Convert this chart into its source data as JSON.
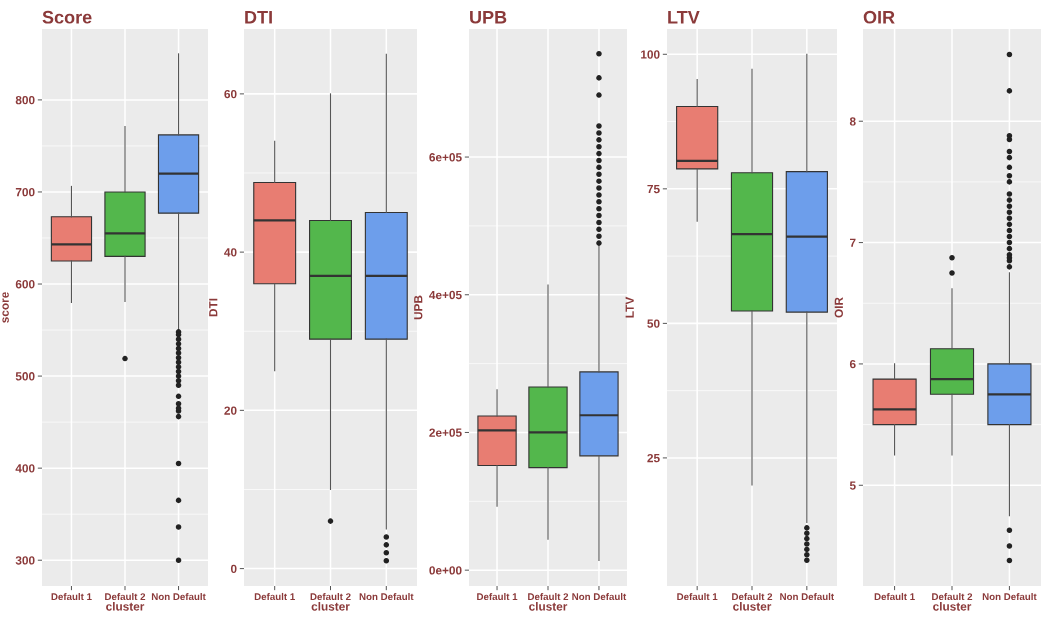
{
  "chart_data": [
    {
      "type": "box",
      "title": "Score",
      "xlabel": "cluster",
      "ylabel": "score",
      "categories": [
        "Default 1",
        "Default 2",
        "Non Default"
      ],
      "colors": [
        "#e87d72",
        "#53b74c",
        "#6d9eeb"
      ],
      "ylim": [
        272,
        877
      ],
      "yticks": [
        300,
        400,
        500,
        600,
        700,
        800
      ],
      "grid": true,
      "boxes": [
        {
          "low": 580,
          "q1": 625,
          "median": 643,
          "q3": 673,
          "high": 706
        },
        {
          "low": 581,
          "q1": 630,
          "median": 655,
          "q3": 700,
          "high": 771,
          "outliers": [
            519
          ]
        },
        {
          "low": 550,
          "q1": 677,
          "median": 720,
          "q3": 762,
          "high": 850,
          "outliers": [
            548,
            545,
            540,
            535,
            530,
            525,
            520,
            515,
            510,
            505,
            500,
            495,
            490,
            478,
            470,
            465,
            462,
            456,
            405,
            365,
            336,
            300
          ]
        }
      ]
    },
    {
      "type": "box",
      "title": "DTI",
      "xlabel": "cluster",
      "ylabel": "DTI",
      "categories": [
        "Default 1",
        "Default 2",
        "Non Default"
      ],
      "colors": [
        "#e87d72",
        "#53b74c",
        "#6d9eeb"
      ],
      "ylim": [
        -2.2,
        68.2
      ],
      "yticks": [
        0,
        20,
        40,
        60
      ],
      "grid": true,
      "boxes": [
        {
          "low": 25,
          "q1": 36,
          "median": 44,
          "q3": 48.8,
          "high": 54
        },
        {
          "low": 10,
          "q1": 29,
          "median": 37,
          "q3": 44,
          "high": 60,
          "outliers": [
            6
          ]
        },
        {
          "low": 5,
          "q1": 29,
          "median": 37,
          "q3": 45,
          "high": 65,
          "outliers": [
            4,
            3,
            2,
            1
          ]
        }
      ]
    },
    {
      "type": "box",
      "title": "UPB",
      "xlabel": "cluster",
      "ylabel": "UPB",
      "categories": [
        "Default 1",
        "Default 2",
        "Non Default"
      ],
      "colors": [
        "#e87d72",
        "#53b74c",
        "#6d9eeb"
      ],
      "ylim": [
        -23000,
        786000
      ],
      "yticks": [
        {
          "value": 0,
          "label": "0e+00"
        },
        {
          "value": 200000,
          "label": "2e+05"
        },
        {
          "value": 400000,
          "label": "4e+05"
        },
        {
          "value": 600000,
          "label": "6e+05"
        }
      ],
      "grid": true,
      "boxes": [
        {
          "low": 93000,
          "q1": 152000,
          "median": 203000,
          "q3": 224000,
          "high": 262000
        },
        {
          "low": 45000,
          "q1": 149000,
          "median": 200000,
          "q3": 266000,
          "high": 414000
        },
        {
          "low": 14000,
          "q1": 166000,
          "median": 225000,
          "q3": 288000,
          "high": 471000,
          "outliers": [
            475000,
            485000,
            495000,
            505000,
            515000,
            525000,
            535000,
            545000,
            555000,
            565000,
            575000,
            585000,
            595000,
            605000,
            615000,
            625000,
            635000,
            645000,
            690000,
            715000,
            750000
          ]
        }
      ]
    },
    {
      "type": "box",
      "title": "LTV",
      "xlabel": "cluster",
      "ylabel": "LTV",
      "categories": [
        "Default 1",
        "Default 2",
        "Non Default"
      ],
      "colors": [
        "#e87d72",
        "#53b74c",
        "#6d9eeb"
      ],
      "ylim": [
        1.2,
        104.7
      ],
      "yticks": [
        25,
        50,
        75,
        100
      ],
      "grid": true,
      "boxes": [
        {
          "low": 69,
          "q1": 78.7,
          "median": 80.2,
          "q3": 90.3,
          "high": 95.3
        },
        {
          "low": 20,
          "q1": 52.3,
          "median": 66.6,
          "q3": 78,
          "high": 97.2
        },
        {
          "low": 13,
          "q1": 52.1,
          "median": 66.1,
          "q3": 78.2,
          "high": 100,
          "outliers": [
            12,
            11,
            10,
            9,
            8,
            7,
            6
          ]
        }
      ]
    },
    {
      "type": "box",
      "title": "OIR",
      "xlabel": "cluster",
      "ylabel": "OIR",
      "categories": [
        "Default 1",
        "Default 2",
        "Non Default"
      ],
      "colors": [
        "#e87d72",
        "#53b74c",
        "#6d9eeb"
      ],
      "ylim": [
        4.17,
        8.76
      ],
      "yticks": [
        5,
        6,
        7,
        8
      ],
      "grid": true,
      "boxes": [
        {
          "low": 5.25,
          "q1": 5.5,
          "median": 5.625,
          "q3": 5.875,
          "high": 6.0
        },
        {
          "low": 5.25,
          "q1": 5.75,
          "median": 5.875,
          "q3": 6.125,
          "high": 6.62,
          "outliers": [
            6.75,
            6.875
          ]
        },
        {
          "low": 4.75,
          "q1": 5.5,
          "median": 5.75,
          "q3": 6.0,
          "high": 6.75,
          "outliers": [
            4.63,
            4.5,
            4.38,
            6.8,
            6.85,
            6.875,
            6.9,
            6.95,
            7.0,
            7.05,
            7.1,
            7.15,
            7.2,
            7.25,
            7.3,
            7.35,
            7.4,
            7.5,
            7.55,
            7.62,
            7.7,
            7.75,
            7.85,
            7.88,
            8.25,
            8.55
          ]
        }
      ]
    }
  ]
}
